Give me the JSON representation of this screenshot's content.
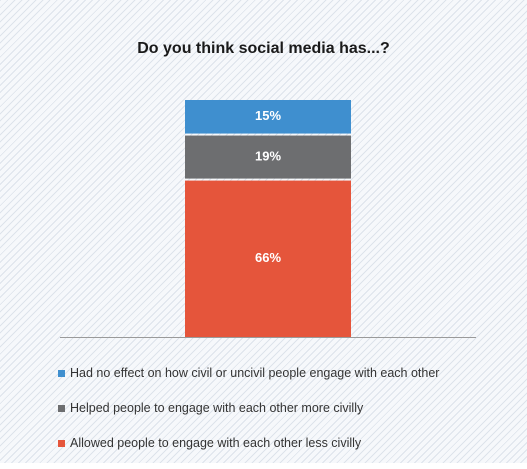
{
  "chart_data": {
    "type": "bar",
    "title": "Do you think social media has...?",
    "stacked": true,
    "ylim": [
      0,
      100
    ],
    "series": [
      {
        "name": "Allowed people to engage with each other less civilly",
        "value": 66,
        "label": "66%",
        "color": "#e5553b"
      },
      {
        "name": "Helped people to engage with each other more civilly",
        "value": 19,
        "label": "19%",
        "color": "#6d6e70"
      },
      {
        "name": "Had no effect on how civil or uncivil people engage with each other",
        "value": 15,
        "label": "15%",
        "color": "#3f8fcf"
      }
    ],
    "legend": {
      "position": "bottom",
      "order": [
        2,
        1,
        0
      ]
    }
  }
}
